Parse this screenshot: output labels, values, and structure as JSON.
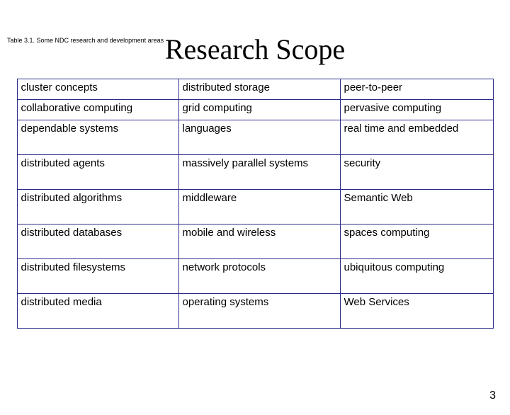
{
  "caption": "Table 3.1. Some NDC research and development areas",
  "title": "Research Scope",
  "page_number": "3",
  "table": {
    "border_color": "#2a2a8a",
    "font_size": 15,
    "columns": 3,
    "rows": [
      {
        "cells": [
          "cluster concepts",
          "distributed storage",
          "peer-to-peer"
        ],
        "tall": false
      },
      {
        "cells": [
          "collaborative computing",
          "grid computing",
          "pervasive computing"
        ],
        "tall": false
      },
      {
        "cells": [
          "dependable systems",
          "languages",
          "real time and embedded"
        ],
        "tall": true
      },
      {
        "cells": [
          "distributed agents",
          "massively parallel systems",
          "security"
        ],
        "tall": true
      },
      {
        "cells": [
          "distributed algorithms",
          "middleware",
          "Semantic Web"
        ],
        "tall": true
      },
      {
        "cells": [
          "distributed databases",
          "mobile and wireless",
          "spaces computing"
        ],
        "tall": true
      },
      {
        "cells": [
          "distributed filesystems",
          "network protocols",
          "ubiquitous computing"
        ],
        "tall": true
      },
      {
        "cells": [
          "distributed media",
          "operating systems",
          "Web Services"
        ],
        "tall": true
      }
    ]
  }
}
